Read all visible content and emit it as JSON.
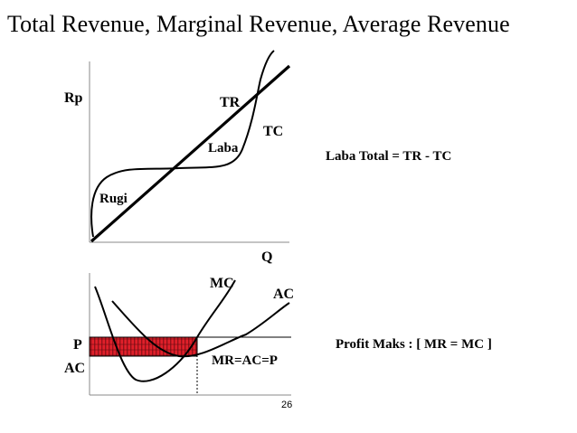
{
  "title": "Total Revenue, Marginal Revenue, Average Revenue",
  "top_diagram": {
    "y_label": "Rp",
    "x_label": "Q",
    "tr_label": "TR",
    "tc_label": "TC",
    "profit_label": "Laba",
    "loss_label": "Rugi"
  },
  "bottom_diagram": {
    "mc_label": "MC",
    "ac_label": "AC",
    "p_label": "P",
    "ac_axis_label": "AC",
    "equilibrium_label": "MR=AC=P",
    "profit_area_color": "#e0202a"
  },
  "formulas": {
    "total_profit": "Laba Total = TR - TC",
    "max_profit": "Profit Maks : [ MR = MC ]"
  },
  "page_number": "26"
}
